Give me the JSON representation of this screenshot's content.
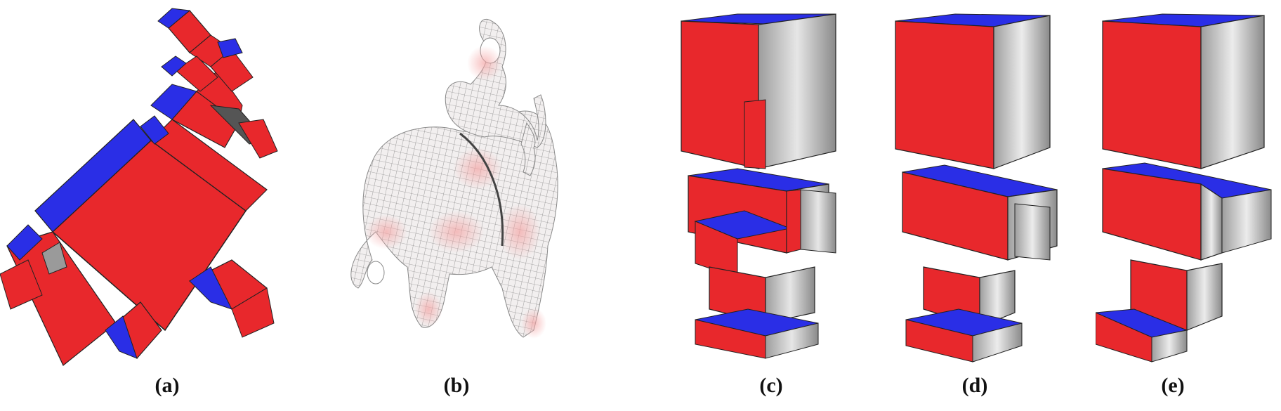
{
  "figure": {
    "panels": [
      {
        "id": "a",
        "label": "(a)"
      },
      {
        "id": "b",
        "label": "(b)"
      },
      {
        "id": "c",
        "label": "(c)"
      },
      {
        "id": "d",
        "label": "(d)"
      },
      {
        "id": "e",
        "label": "(e)"
      }
    ],
    "colors": {
      "red": "#e8282c",
      "blue": "#2a2ee6",
      "gray": "#b9b9b9",
      "mesh_line": "#555555"
    }
  }
}
